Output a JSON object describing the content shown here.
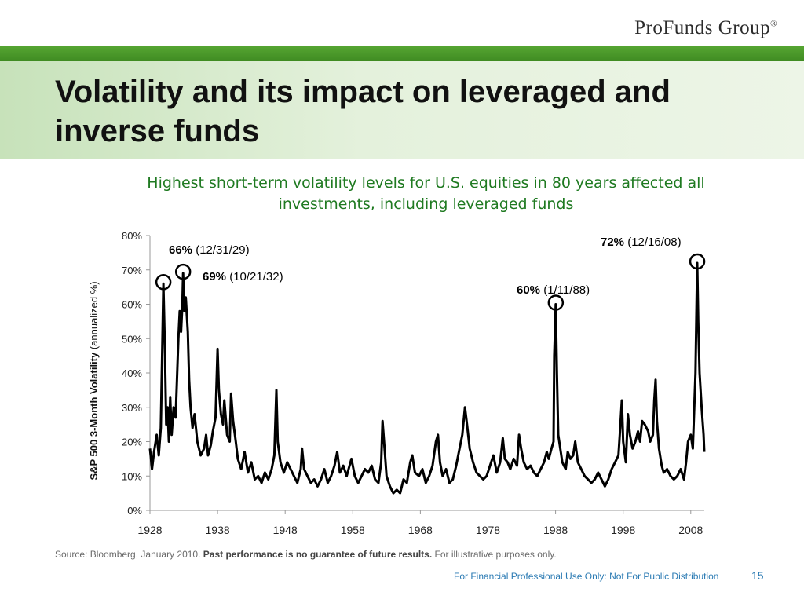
{
  "brand": {
    "logo_text": "ProFunds Group",
    "logo_mark": "®"
  },
  "header": {
    "title": "Volatility and its impact on leveraged and inverse funds"
  },
  "subtitle": "Highest short-term volatility levels for U.S. equities in 80 years affected all investments, including leveraged funds",
  "chart_data": {
    "type": "line",
    "ylabel_bold": "S&P 500 3-Month Volatility",
    "ylabel_normal": " (annualized %)",
    "xlim": [
      1928,
      2010
    ],
    "ylim": [
      0,
      80
    ],
    "x_ticks": [
      1928,
      1938,
      1948,
      1958,
      1968,
      1978,
      1988,
      1998,
      2008
    ],
    "y_ticks": [
      "0%",
      "10%",
      "20%",
      "30%",
      "40%",
      "50%",
      "60%",
      "70%",
      "80%"
    ],
    "series": [
      {
        "values": [
          [
            1928.0,
            18
          ],
          [
            1928.3,
            12
          ],
          [
            1928.6,
            17
          ],
          [
            1929.0,
            22
          ],
          [
            1929.3,
            16
          ],
          [
            1929.6,
            24
          ],
          [
            1929.8,
            45
          ],
          [
            1929.99,
            66
          ],
          [
            1930.2,
            48
          ],
          [
            1930.4,
            25
          ],
          [
            1930.6,
            30
          ],
          [
            1930.8,
            20
          ],
          [
            1931.0,
            33
          ],
          [
            1931.2,
            22
          ],
          [
            1931.5,
            30
          ],
          [
            1931.8,
            27
          ],
          [
            1932.0,
            38
          ],
          [
            1932.2,
            50
          ],
          [
            1932.4,
            58
          ],
          [
            1932.6,
            52
          ],
          [
            1932.8,
            60
          ],
          [
            1932.9,
            69
          ],
          [
            1933.1,
            58
          ],
          [
            1933.3,
            62
          ],
          [
            1933.6,
            52
          ],
          [
            1933.8,
            38
          ],
          [
            1934.0,
            30
          ],
          [
            1934.3,
            24
          ],
          [
            1934.6,
            28
          ],
          [
            1935.0,
            20
          ],
          [
            1935.5,
            16
          ],
          [
            1936.0,
            18
          ],
          [
            1936.3,
            22
          ],
          [
            1936.6,
            16
          ],
          [
            1937.0,
            19
          ],
          [
            1937.3,
            23
          ],
          [
            1937.7,
            27
          ],
          [
            1938.0,
            47
          ],
          [
            1938.2,
            35
          ],
          [
            1938.5,
            28
          ],
          [
            1938.8,
            25
          ],
          [
            1939.0,
            32
          ],
          [
            1939.4,
            22
          ],
          [
            1939.8,
            20
          ],
          [
            1940.0,
            34
          ],
          [
            1940.3,
            26
          ],
          [
            1940.7,
            20
          ],
          [
            1941.0,
            15
          ],
          [
            1941.5,
            12
          ],
          [
            1942.0,
            17
          ],
          [
            1942.5,
            11
          ],
          [
            1943.0,
            14
          ],
          [
            1943.5,
            9
          ],
          [
            1944.0,
            10
          ],
          [
            1944.5,
            8
          ],
          [
            1945.0,
            11
          ],
          [
            1945.5,
            9
          ],
          [
            1946.0,
            12
          ],
          [
            1946.4,
            16
          ],
          [
            1946.7,
            35
          ],
          [
            1946.9,
            20
          ],
          [
            1947.3,
            14
          ],
          [
            1947.8,
            11
          ],
          [
            1948.3,
            14
          ],
          [
            1948.8,
            12
          ],
          [
            1949.3,
            10
          ],
          [
            1949.8,
            8
          ],
          [
            1950.3,
            12
          ],
          [
            1950.5,
            18
          ],
          [
            1950.8,
            12
          ],
          [
            1951.3,
            10
          ],
          [
            1951.8,
            8
          ],
          [
            1952.3,
            9
          ],
          [
            1952.8,
            7
          ],
          [
            1953.3,
            9
          ],
          [
            1953.8,
            12
          ],
          [
            1954.3,
            8
          ],
          [
            1954.8,
            10
          ],
          [
            1955.3,
            13
          ],
          [
            1955.7,
            17
          ],
          [
            1956.1,
            11
          ],
          [
            1956.6,
            13
          ],
          [
            1957.1,
            10
          ],
          [
            1957.8,
            15
          ],
          [
            1958.3,
            10
          ],
          [
            1958.8,
            8
          ],
          [
            1959.3,
            10
          ],
          [
            1959.8,
            12
          ],
          [
            1960.3,
            11
          ],
          [
            1960.8,
            13
          ],
          [
            1961.3,
            9
          ],
          [
            1961.8,
            8
          ],
          [
            1962.2,
            14
          ],
          [
            1962.4,
            26
          ],
          [
            1962.7,
            18
          ],
          [
            1963.0,
            10
          ],
          [
            1963.5,
            7
          ],
          [
            1964.0,
            5
          ],
          [
            1964.5,
            6
          ],
          [
            1965.0,
            5
          ],
          [
            1965.5,
            9
          ],
          [
            1966.0,
            8
          ],
          [
            1966.5,
            14
          ],
          [
            1966.8,
            16
          ],
          [
            1967.2,
            11
          ],
          [
            1967.8,
            10
          ],
          [
            1968.3,
            12
          ],
          [
            1968.8,
            8
          ],
          [
            1969.3,
            10
          ],
          [
            1969.8,
            13
          ],
          [
            1970.3,
            20
          ],
          [
            1970.6,
            22
          ],
          [
            1970.9,
            14
          ],
          [
            1971.3,
            10
          ],
          [
            1971.8,
            12
          ],
          [
            1972.3,
            8
          ],
          [
            1972.8,
            9
          ],
          [
            1973.3,
            13
          ],
          [
            1973.8,
            18
          ],
          [
            1974.2,
            22
          ],
          [
            1974.6,
            30
          ],
          [
            1974.9,
            25
          ],
          [
            1975.3,
            18
          ],
          [
            1975.8,
            14
          ],
          [
            1976.3,
            11
          ],
          [
            1976.8,
            10
          ],
          [
            1977.3,
            9
          ],
          [
            1977.8,
            10
          ],
          [
            1978.3,
            13
          ],
          [
            1978.8,
            16
          ],
          [
            1979.3,
            11
          ],
          [
            1979.8,
            14
          ],
          [
            1980.2,
            21
          ],
          [
            1980.5,
            15
          ],
          [
            1980.9,
            14
          ],
          [
            1981.3,
            12
          ],
          [
            1981.8,
            15
          ],
          [
            1982.3,
            13
          ],
          [
            1982.6,
            22
          ],
          [
            1982.9,
            18
          ],
          [
            1983.3,
            14
          ],
          [
            1983.8,
            12
          ],
          [
            1984.3,
            13
          ],
          [
            1984.8,
            11
          ],
          [
            1985.3,
            10
          ],
          [
            1985.8,
            12
          ],
          [
            1986.3,
            14
          ],
          [
            1986.7,
            17
          ],
          [
            1987.0,
            15
          ],
          [
            1987.4,
            18
          ],
          [
            1987.7,
            20
          ],
          [
            1987.8,
            45
          ],
          [
            1988.03,
            60
          ],
          [
            1988.2,
            40
          ],
          [
            1988.4,
            22
          ],
          [
            1988.7,
            18
          ],
          [
            1989.0,
            14
          ],
          [
            1989.5,
            12
          ],
          [
            1989.8,
            17
          ],
          [
            1990.2,
            15
          ],
          [
            1990.6,
            16
          ],
          [
            1990.9,
            20
          ],
          [
            1991.3,
            14
          ],
          [
            1991.8,
            12
          ],
          [
            1992.3,
            10
          ],
          [
            1992.8,
            9
          ],
          [
            1993.3,
            8
          ],
          [
            1993.8,
            9
          ],
          [
            1994.3,
            11
          ],
          [
            1994.8,
            9
          ],
          [
            1995.3,
            7
          ],
          [
            1995.8,
            9
          ],
          [
            1996.3,
            12
          ],
          [
            1996.8,
            14
          ],
          [
            1997.3,
            16
          ],
          [
            1997.6,
            25
          ],
          [
            1997.8,
            32
          ],
          [
            1998.0,
            20
          ],
          [
            1998.4,
            14
          ],
          [
            1998.7,
            28
          ],
          [
            1999.0,
            22
          ],
          [
            1999.4,
            18
          ],
          [
            1999.8,
            20
          ],
          [
            2000.2,
            23
          ],
          [
            2000.5,
            20
          ],
          [
            2000.8,
            26
          ],
          [
            2001.2,
            25
          ],
          [
            2001.7,
            23
          ],
          [
            2002.0,
            20
          ],
          [
            2002.4,
            22
          ],
          [
            2002.6,
            32
          ],
          [
            2002.8,
            38
          ],
          [
            2003.0,
            26
          ],
          [
            2003.3,
            18
          ],
          [
            2003.7,
            13
          ],
          [
            2004.0,
            11
          ],
          [
            2004.5,
            12
          ],
          [
            2005.0,
            10
          ],
          [
            2005.5,
            9
          ],
          [
            2006.0,
            10
          ],
          [
            2006.5,
            12
          ],
          [
            2007.0,
            9
          ],
          [
            2007.3,
            14
          ],
          [
            2007.6,
            20
          ],
          [
            2008.0,
            22
          ],
          [
            2008.3,
            18
          ],
          [
            2008.7,
            40
          ],
          [
            2008.96,
            72
          ],
          [
            2009.1,
            55
          ],
          [
            2009.3,
            40
          ],
          [
            2009.6,
            30
          ],
          [
            2009.9,
            22
          ],
          [
            2010.0,
            17
          ]
        ]
      }
    ],
    "annotations": [
      {
        "bold": "66%",
        "text": " (12/31/29)",
        "x": 1929.99,
        "y": 66
      },
      {
        "bold": "69%",
        "text": " (10/21/32)",
        "x": 1932.9,
        "y": 69
      },
      {
        "bold": "60%",
        "text": " (1/11/88)",
        "x": 1988.03,
        "y": 60
      },
      {
        "bold": "72%",
        "text": " (12/16/08)",
        "x": 2008.96,
        "y": 72
      }
    ]
  },
  "source": {
    "prefix": "Source: Bloomberg, January 2010. ",
    "bold": "Past performance is no guarantee of future results.",
    "suffix": " For illustrative purposes only."
  },
  "footer": {
    "disclaimer": "For Financial Professional Use Only: Not For Public Distribution",
    "page": "15"
  }
}
